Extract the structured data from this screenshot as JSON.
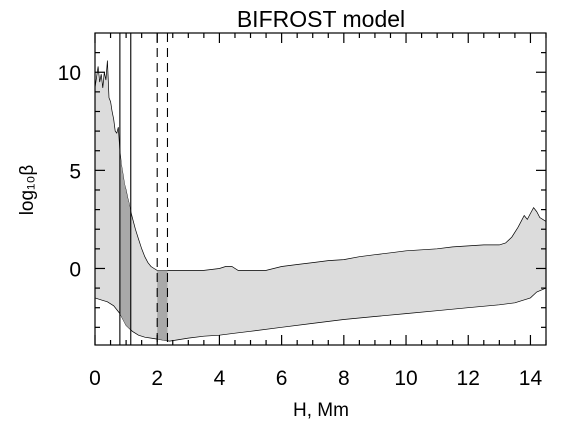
{
  "chart_data": {
    "type": "area",
    "title": "BIFROST model",
    "xlabel": "H, Mm",
    "ylabel": "log₁₀β",
    "xlim": [
      0,
      14.5
    ],
    "ylim": [
      -3.9,
      12.0
    ],
    "x_ticks": [
      0,
      2,
      4,
      6,
      8,
      10,
      12,
      14
    ],
    "x_tick_labels": [
      "0",
      "2",
      "4",
      "6",
      "8",
      "10",
      "12",
      "14"
    ],
    "y_ticks": [
      0,
      5,
      10
    ],
    "y_tick_labels": [
      "0",
      "5",
      "10"
    ],
    "grid": false,
    "series": [
      {
        "role": "upper envelope",
        "x": [
          0,
          0.1,
          0.15,
          0.2,
          0.25,
          0.3,
          0.35,
          0.4,
          0.45,
          0.5,
          0.55,
          0.6,
          0.65,
          0.7,
          0.75,
          0.8,
          0.85,
          0.9,
          0.95,
          1.0,
          1.05,
          1.1,
          1.15,
          1.2,
          1.3,
          1.4,
          1.5,
          1.6,
          1.7,
          1.8,
          1.9,
          2.0,
          2.5,
          3.0,
          3.5,
          4.0,
          4.2,
          4.4,
          4.6,
          5.0,
          5.5,
          6.0,
          6.5,
          7.0,
          7.5,
          8.0,
          8.5,
          9.0,
          9.5,
          10.0,
          10.5,
          11.0,
          11.5,
          12.0,
          12.5,
          13.0,
          13.2,
          13.4,
          13.6,
          13.7,
          13.8,
          13.9,
          14.0,
          14.1,
          14.2,
          14.3,
          14.5
        ],
        "y": [
          9.2,
          10.3,
          9.5,
          9.9,
          9.2,
          10.0,
          9.6,
          10.6,
          8.7,
          8.5,
          8.0,
          7.6,
          7.0,
          6.9,
          7.2,
          6.0,
          5.3,
          4.8,
          4.3,
          4.0,
          3.6,
          3.3,
          2.9,
          2.6,
          2.0,
          1.5,
          1.0,
          0.6,
          0.3,
          0.1,
          0.0,
          -0.1,
          -0.1,
          -0.1,
          -0.1,
          0.0,
          0.1,
          0.1,
          -0.1,
          -0.1,
          -0.1,
          0.1,
          0.2,
          0.3,
          0.4,
          0.45,
          0.6,
          0.7,
          0.8,
          0.9,
          0.95,
          1.0,
          1.1,
          1.15,
          1.2,
          1.2,
          1.3,
          1.6,
          2.1,
          2.4,
          2.7,
          2.5,
          2.8,
          3.1,
          2.9,
          2.6,
          2.4
        ]
      },
      {
        "role": "lower envelope",
        "x": [
          0,
          0.2,
          0.4,
          0.6,
          0.8,
          1.0,
          1.2,
          1.4,
          1.6,
          1.8,
          2.0,
          2.2,
          2.4,
          2.6,
          3.0,
          3.5,
          4.0,
          4.5,
          5.0,
          6.0,
          7.0,
          8.0,
          9.0,
          10.0,
          11.0,
          12.0,
          13.0,
          13.5,
          14.0,
          14.2,
          14.5
        ],
        "y": [
          -1.5,
          -1.6,
          -1.7,
          -1.9,
          -2.3,
          -2.9,
          -3.2,
          -3.4,
          -3.5,
          -3.55,
          -3.6,
          -3.65,
          -3.7,
          -3.65,
          -3.55,
          -3.45,
          -3.4,
          -3.3,
          -3.2,
          -3.0,
          -2.8,
          -2.6,
          -2.45,
          -2.3,
          -2.15,
          -2.0,
          -1.85,
          -1.75,
          -1.5,
          -1.2,
          -1.0
        ]
      }
    ],
    "highlight_ranges": [
      {
        "x": [
          0.8,
          1.15
        ]
      },
      {
        "x": [
          2.0,
          2.33
        ]
      }
    ],
    "reference_lines": [
      {
        "x": 0.8,
        "style": "solid"
      },
      {
        "x": 1.15,
        "style": "solid"
      },
      {
        "x": 2.0,
        "style": "dashed"
      },
      {
        "x": 2.33,
        "style": "dashed"
      }
    ],
    "colors": {
      "fill": "#dcdcdc",
      "highlight_fill": "#a9a9a9",
      "line": "#000000"
    }
  }
}
